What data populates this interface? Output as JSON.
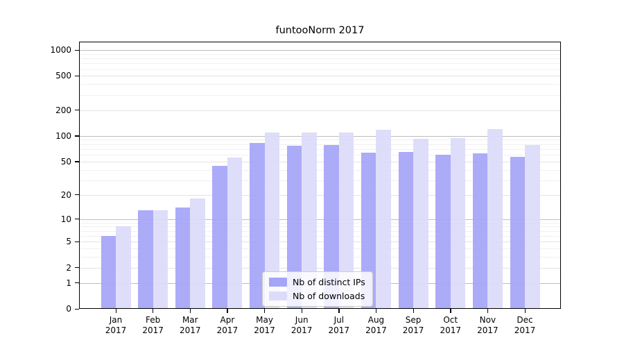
{
  "window": {
    "title": "funtooNorm 2017"
  },
  "chart_data": {
    "type": "bar",
    "title": "funtooNorm 2017",
    "categories": [
      "Jan",
      "Feb",
      "Mar",
      "Apr",
      "May",
      "Jun",
      "Jul",
      "Aug",
      "Sep",
      "Oct",
      "Nov",
      "Dec"
    ],
    "category_year": "2017",
    "series": [
      {
        "name": "Nb of distinct IPs",
        "color": "#a5a5f7",
        "values": [
          6,
          13,
          14,
          44,
          83,
          76,
          78,
          64,
          65,
          60,
          62,
          57
        ]
      },
      {
        "name": "Nb of downloads",
        "color": "#dcdcfa",
        "values": [
          8,
          13,
          18,
          56,
          110,
          110,
          110,
          118,
          92,
          95,
          120,
          78
        ]
      }
    ],
    "xlabel": "",
    "ylabel": "",
    "yscale": "log1p",
    "ylim": [
      0,
      1200
    ],
    "yticks": [
      0,
      1,
      2,
      5,
      10,
      20,
      50,
      100,
      200,
      500,
      1000
    ],
    "minor_yticks": [
      3,
      4,
      6,
      7,
      8,
      9,
      30,
      40,
      60,
      70,
      80,
      90,
      300,
      400,
      600,
      700,
      800,
      900
    ],
    "grid": true,
    "legend_position": "lower center",
    "legend": {
      "items": [
        {
          "label": "Nb of distinct IPs",
          "color": "#a5a5f7"
        },
        {
          "label": "Nb of downloads",
          "color": "#dcdcfa"
        }
      ]
    },
    "colors": {
      "major_grid": "#bdbdbd",
      "mid_grid": "#e3e3e3",
      "minor_grid": "#f0f0f0",
      "axis": "#000000",
      "background": "#ffffff"
    }
  }
}
